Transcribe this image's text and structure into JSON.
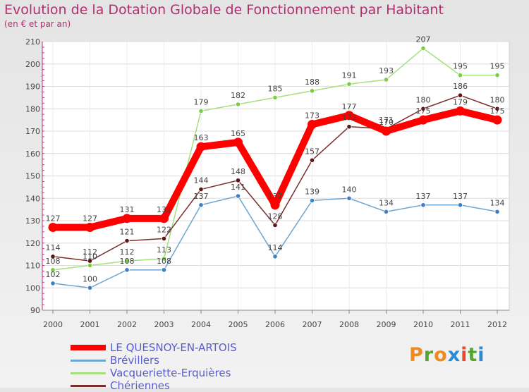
{
  "title": "Evolution de la Dotation Globale de Fonctionnement par Habitant",
  "subtitle": "(en € et par an)",
  "brand": {
    "letters": [
      "P",
      "r",
      "o",
      "x",
      "i",
      "t",
      "i"
    ],
    "colors": [
      "#f08a1e",
      "#5aa531",
      "#f08a1e",
      "#2a8ad4",
      "#e84b2c",
      "#5aa531",
      "#2a8ad4"
    ]
  },
  "chart_data": {
    "type": "line",
    "title": "Evolution de la Dotation Globale de Fonctionnement par Habitant",
    "ylabel": "(en € et par an)",
    "xlabel": "",
    "ylim": [
      90,
      210
    ],
    "yticks": [
      90,
      100,
      110,
      120,
      130,
      140,
      150,
      160,
      170,
      180,
      190,
      200,
      210
    ],
    "categories": [
      "2000",
      "2001",
      "2002",
      "2003",
      "2004",
      "2005",
      "2006",
      "2007",
      "2008",
      "2009",
      "2010",
      "2011",
      "2012"
    ],
    "series": [
      {
        "name": "LE QUESNOY-EN-ARTOIS",
        "color": "#ff0000",
        "dot": "#ff0000",
        "width": 10,
        "dotr": 6.5,
        "values": [
          127,
          127,
          131,
          131,
          163,
          165,
          137,
          173,
          177,
          170,
          175,
          179,
          175
        ],
        "labels": [
          "127",
          "127",
          "131",
          "131",
          "163",
          "165",
          "137",
          "173",
          "177",
          "170",
          "175",
          "179",
          "175"
        ]
      },
      {
        "name": "Brévillers",
        "color": "#6ea6d2",
        "dot": "#3f7fc0",
        "width": 1.5,
        "dotr": 3.2,
        "values": [
          102,
          100,
          108,
          108,
          137,
          141,
          114,
          139,
          140,
          134,
          137,
          137,
          134
        ],
        "labels": [
          "102",
          "100",
          "108",
          "108",
          "137",
          "141",
          "114",
          "139",
          "140",
          "134",
          "137",
          "137",
          "134"
        ]
      },
      {
        "name": "Vacqueriette-Erquières",
        "color": "#a6e07c",
        "dot": "#7ccc44",
        "width": 1.5,
        "dotr": 3.2,
        "values": [
          108,
          110,
          112,
          113,
          179,
          182,
          185,
          188,
          191,
          193,
          207,
          195,
          195
        ],
        "labels": [
          "108",
          "110",
          "112",
          "113",
          "179",
          "182",
          "185",
          "188",
          "191",
          "193",
          "207",
          "195",
          "195"
        ]
      },
      {
        "name": "Chériennes",
        "color": "#7a2e2e",
        "dot": "#5c1414",
        "width": 1.5,
        "dotr": 3.2,
        "values": [
          114,
          112,
          121,
          122,
          144,
          148,
          128,
          157,
          172,
          171,
          180,
          186,
          180
        ],
        "labels": [
          "114",
          "112",
          "121",
          "122",
          "144",
          "148",
          "128",
          "157",
          "172",
          "171",
          "180",
          "186",
          "180"
        ]
      }
    ]
  }
}
